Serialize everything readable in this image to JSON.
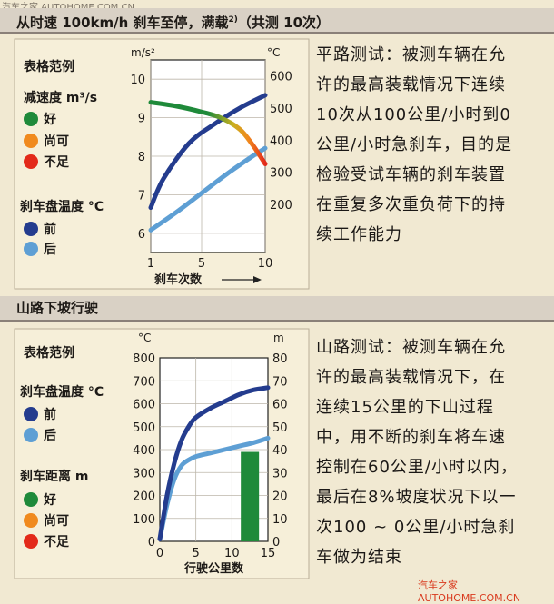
{
  "watermark_top": "汽车之家 AUTOHOME.COM.CN",
  "watermark_bottom": "汽车之家 AUTOHOME.COM.CN",
  "section1": {
    "title": "从时速 100km/h 刹车至停，满载",
    "title_sup": "2)",
    "title_tail": "（共测 10次）",
    "legend": {
      "heading": "表格范例",
      "decel_label": "减速度 m³/s",
      "good": "好",
      "fair": "尚可",
      "poor": "不足",
      "temp_label": "刹车盘温度 °C",
      "front": "前",
      "rear": "后"
    },
    "description": [
      "平路测试：被测车辆在允",
      "许的最高装载情况下连续",
      "10次从100公里/小时到0",
      "公里/小时急刹车，目的是",
      "检验受试车辆的刹车装置",
      "在重复多次重负荷下的持",
      "续工作能力"
    ]
  },
  "section2": {
    "title": "山路下坡行驶",
    "legend": {
      "heading": "表格范例",
      "temp_label": "刹车盘温度 °C",
      "front": "前",
      "rear": "后",
      "dist_label": "刹车距离  m",
      "good": "好",
      "fair": "尚可",
      "poor": "不足"
    },
    "description": [
      "山路测试：被测车辆在允",
      "许的最高装载情况下，在",
      "连续15公里的下山过程",
      "中，用不断的刹车将车速",
      "控制在60公里/小时以内，",
      "最后在8%坡度状况下以一",
      "次100 ~ 0公里/小时急刹",
      "车做为结束"
    ]
  },
  "colors": {
    "good": "#1f8a3a",
    "fair": "#f08a1e",
    "poor": "#e32a1a",
    "front": "#243c8e",
    "rear": "#5e9fd4"
  },
  "chart_data": [
    {
      "type": "line",
      "xlabel": "刹车次数",
      "ylabel_left": "m/s²",
      "ylabel_right": "°C",
      "xlim": [
        1,
        10
      ],
      "xticks": [
        "1",
        "5",
        "10"
      ],
      "ylim_left": [
        5.5,
        10.5
      ],
      "yticks_left": [
        "10",
        "9",
        "8",
        "7",
        "6"
      ],
      "ylim_right": [
        50,
        650
      ],
      "yticks_right": [
        "600",
        "500",
        "400",
        "300",
        "200"
      ],
      "grid": true,
      "series": [
        {
          "name": "减速度",
          "axis": "left",
          "x": [
            1,
            3,
            5,
            6.5,
            8,
            9,
            10
          ],
          "values": [
            9.4,
            9.3,
            9.15,
            9.0,
            8.7,
            8.3,
            7.8
          ]
        },
        {
          "name": "前",
          "axis": "right",
          "x": [
            1,
            2,
            4,
            6,
            8,
            10
          ],
          "values": [
            190,
            280,
            390,
            450,
            500,
            540
          ]
        },
        {
          "name": "后",
          "axis": "right",
          "x": [
            1,
            3,
            5,
            7,
            9,
            10
          ],
          "values": [
            120,
            175,
            235,
            295,
            350,
            375
          ]
        }
      ]
    },
    {
      "type": "line",
      "xlabel": "行驶公里数",
      "ylabel_left": "°C",
      "ylabel_right": "m",
      "xlim": [
        0,
        15
      ],
      "xticks": [
        "0",
        "5",
        "10",
        "15"
      ],
      "ylim_left": [
        0,
        800
      ],
      "yticks_left": [
        "800",
        "700",
        "600",
        "500",
        "400",
        "300",
        "200",
        "100",
        "0"
      ],
      "ylim_right": [
        0,
        80
      ],
      "yticks_right": [
        "80",
        "70",
        "60",
        "50",
        "40",
        "30",
        "20",
        "10",
        "0"
      ],
      "grid": true,
      "series": [
        {
          "name": "前",
          "axis": "left",
          "x": [
            0,
            1,
            2,
            3,
            4,
            5,
            7,
            9,
            11,
            13,
            15
          ],
          "values": [
            10,
            200,
            340,
            440,
            500,
            540,
            580,
            610,
            640,
            660,
            670
          ]
        },
        {
          "name": "后",
          "axis": "left",
          "x": [
            0,
            1,
            2,
            3,
            4,
            5,
            7,
            9,
            11,
            13,
            15
          ],
          "values": [
            10,
            160,
            270,
            330,
            355,
            370,
            385,
            400,
            415,
            430,
            450
          ]
        },
        {
          "name": "刹车距离",
          "axis": "right",
          "type": "bar",
          "x": [
            12.5
          ],
          "values": [
            39
          ]
        }
      ]
    }
  ]
}
